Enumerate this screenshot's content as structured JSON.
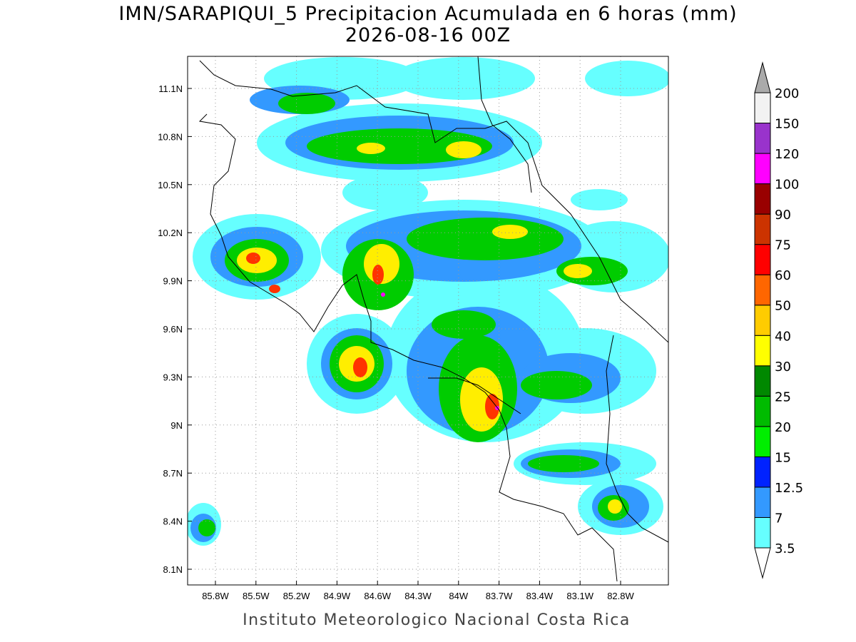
{
  "title": "IMN/SARAPIQUI_5 Precipitacion Acumulada en 6 horas (mm)",
  "subtitle": "2026-08-16 00Z",
  "footer": "Instituto Meteorologico Nacional Costa Rica",
  "map": {
    "lat_labels": [
      "11.1N",
      "10.8N",
      "10.5N",
      "10.2N",
      "9.9N",
      "9.6N",
      "9.3N",
      "9N",
      "8.7N",
      "8.4N",
      "8.1N"
    ],
    "lon_labels": [
      "85.8W",
      "85.5W",
      "85.2W",
      "84.9W",
      "84.6W",
      "84.3W",
      "84W",
      "83.7W",
      "83.4W",
      "83.1W",
      "82.8W"
    ]
  },
  "legend": {
    "levels": [
      3.5,
      7,
      12.5,
      15,
      20,
      25,
      30,
      40,
      50,
      60,
      75,
      90,
      100,
      120,
      150,
      200
    ],
    "colors": [
      "#66ffff",
      "#3399ff",
      "#0022ff",
      "#00ee00",
      "#00bb00",
      "#008800",
      "#ffff00",
      "#ffcc00",
      "#ff6600",
      "#ff0000",
      "#cc3300",
      "#990000",
      "#ff00ff",
      "#9933cc",
      "#f2f2f2"
    ],
    "under_color": "#ffffff",
    "over_color": "#aaaaaa"
  }
}
